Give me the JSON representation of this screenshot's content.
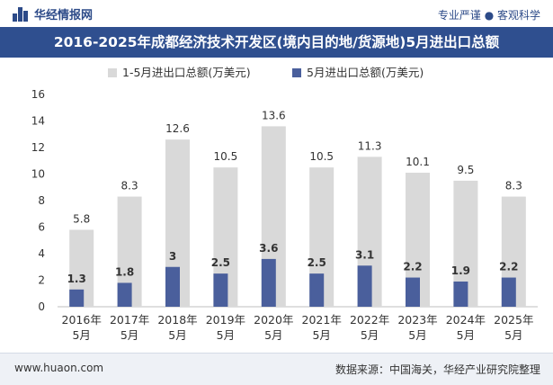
{
  "header": {
    "brand": "华经情报网",
    "tagline": "专业严谨 ● 客观科学"
  },
  "footer": {
    "url": "www.huaon.com",
    "source": "数据来源：中国海关，华经产业研究院整理"
  },
  "colors": {
    "title_band": "#2f4f8f",
    "series_jan_may": "#d9d9d9",
    "series_may": "#4a5f9c"
  },
  "chart_data": {
    "type": "bar",
    "title": "2016-2025年成都经济技术开发区(境内目的地/货源地)5月进出口总额",
    "categories": [
      "2016年\n5月",
      "2017年\n5月",
      "2018年\n5月",
      "2019年\n5月",
      "2020年\n5月",
      "2021年\n5月",
      "2022年\n5月",
      "2023年\n5月",
      "2024年\n5月",
      "2025年\n5月"
    ],
    "series": [
      {
        "name": "1-5月进出口总额(万美元)",
        "values": [
          5.8,
          8.3,
          12.6,
          10.5,
          13.6,
          10.5,
          11.3,
          10.1,
          9.5,
          8.3
        ]
      },
      {
        "name": "5月进出口总额(万美元)",
        "values": [
          1.3,
          1.8,
          3,
          2.5,
          3.6,
          2.5,
          3.1,
          2.2,
          1.9,
          2.2
        ]
      }
    ],
    "ylim": [
      0,
      16
    ],
    "yticks": [
      0,
      2,
      4,
      6,
      8,
      10,
      12,
      14,
      16
    ],
    "xlabel": "",
    "ylabel": "",
    "legend": "top",
    "grid": false
  }
}
